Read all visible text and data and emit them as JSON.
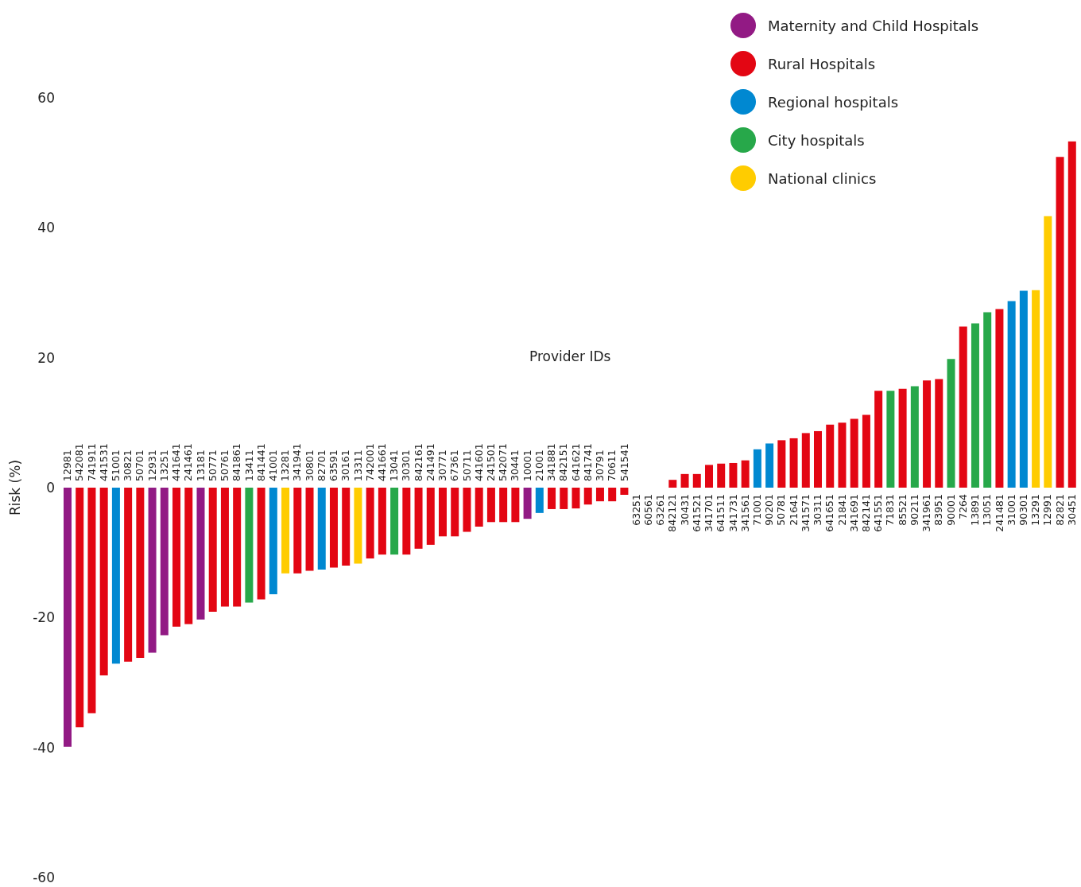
{
  "chart_data": {
    "type": "bar",
    "xlabel": "Provider IDs",
    "ylabel": "Risk (%)",
    "categories": [
      "12981",
      "542081",
      "741911",
      "441531",
      "51001",
      "30821",
      "50701",
      "12931",
      "13251",
      "441641",
      "241461",
      "13181",
      "50771",
      "50761",
      "841861",
      "13411",
      "841441",
      "41001",
      "13281",
      "341941",
      "30801",
      "82701",
      "63591",
      "30161",
      "13311",
      "742001",
      "441661",
      "13041",
      "30301",
      "842161",
      "241491",
      "30771",
      "67361",
      "50711",
      "441601",
      "241501",
      "542071",
      "30441",
      "10001",
      "21001",
      "341881",
      "842151",
      "641621",
      "841741",
      "30791",
      "70611",
      "541541",
      "63251",
      "60561",
      "63261",
      "842121",
      "30431",
      "641521",
      "341701",
      "641511",
      "341731",
      "341561",
      "71001",
      "90201",
      "50781",
      "21641",
      "341571",
      "30311",
      "641651",
      "21841",
      "341691",
      "842141",
      "641551",
      "71831",
      "85521",
      "90211",
      "341961",
      "83951",
      "90001",
      "7264",
      "13891",
      "13051",
      "241481",
      "31001",
      "90301",
      "13291",
      "12991",
      "82821",
      "30451"
    ],
    "series": [
      {
        "name": "Maternity and Child Hospitals",
        "color": "#921a84",
        "values": [
          -39.9,
          null,
          null,
          null,
          null,
          null,
          null,
          -25.4,
          -22.7,
          null,
          null,
          -20.3,
          null,
          null,
          null,
          null,
          null,
          null,
          null,
          null,
          null,
          null,
          null,
          null,
          null,
          null,
          null,
          null,
          null,
          null,
          null,
          null,
          null,
          null,
          null,
          null,
          null,
          null,
          -4.8,
          null,
          null,
          null,
          null,
          null,
          null,
          null,
          null,
          null,
          null,
          null,
          null,
          null,
          null,
          null,
          null,
          null,
          null,
          null,
          null,
          null,
          null,
          null,
          null,
          null,
          null,
          null,
          null,
          null,
          null,
          null,
          null,
          null,
          null,
          null,
          null,
          null,
          null,
          null,
          null,
          null,
          null,
          null,
          null,
          null
        ]
      },
      {
        "name": "Rural Hospitals",
        "color": "#e30613",
        "values": [
          null,
          -36.9,
          -34.7,
          -28.9,
          null,
          -26.8,
          -26.2,
          null,
          null,
          -21.4,
          -21.0,
          null,
          -19.1,
          -18.3,
          -18.3,
          null,
          -17.2,
          null,
          null,
          -13.2,
          -12.8,
          null,
          -12.3,
          -12.0,
          null,
          -10.9,
          -10.3,
          null,
          -10.3,
          -9.4,
          -8.8,
          -7.5,
          -7.5,
          -6.8,
          -6.0,
          -5.3,
          -5.3,
          -5.3,
          null,
          null,
          -3.3,
          -3.3,
          -3.2,
          -2.6,
          -2.1,
          -2.1,
          -1.1,
          0,
          0,
          0,
          1.2,
          2.1,
          2.1,
          3.5,
          3.7,
          3.8,
          4.2,
          null,
          null,
          7.3,
          7.6,
          8.4,
          8.7,
          9.7,
          10.0,
          10.6,
          11.2,
          14.9,
          null,
          15.2,
          null,
          16.5,
          16.7,
          null,
          24.8,
          null,
          null,
          27.5,
          null,
          null,
          null,
          null,
          50.9,
          53.3
        ]
      },
      {
        "name": "Regional hospitals",
        "color": "#0088d1",
        "values": [
          null,
          null,
          null,
          null,
          -27.1,
          null,
          null,
          null,
          null,
          null,
          null,
          null,
          null,
          null,
          null,
          null,
          null,
          -16.4,
          null,
          null,
          null,
          -12.6,
          null,
          null,
          null,
          null,
          null,
          null,
          null,
          null,
          null,
          null,
          null,
          null,
          null,
          null,
          null,
          null,
          null,
          -3.9,
          null,
          null,
          null,
          null,
          null,
          null,
          null,
          null,
          null,
          null,
          null,
          null,
          null,
          null,
          null,
          null,
          null,
          5.9,
          6.8,
          null,
          null,
          null,
          null,
          null,
          null,
          null,
          null,
          null,
          null,
          null,
          null,
          null,
          null,
          null,
          null,
          null,
          null,
          null,
          28.7,
          30.3,
          null,
          null,
          null,
          null
        ]
      },
      {
        "name": "City hospitals",
        "color": "#27a84a",
        "values": [
          null,
          null,
          null,
          null,
          null,
          null,
          null,
          null,
          null,
          null,
          null,
          null,
          null,
          null,
          null,
          -17.7,
          null,
          null,
          null,
          null,
          null,
          null,
          null,
          null,
          null,
          null,
          null,
          -10.3,
          null,
          null,
          null,
          null,
          null,
          null,
          null,
          null,
          null,
          null,
          null,
          null,
          null,
          null,
          null,
          null,
          null,
          null,
          null,
          null,
          null,
          null,
          null,
          null,
          null,
          null,
          null,
          null,
          null,
          null,
          null,
          null,
          null,
          null,
          null,
          null,
          null,
          null,
          null,
          null,
          14.9,
          null,
          15.6,
          null,
          null,
          19.8,
          null,
          25.3,
          27.0,
          null,
          null,
          null,
          null,
          null,
          null,
          null
        ]
      },
      {
        "name": "National clinics",
        "color": "#ffcc00",
        "values": [
          null,
          null,
          null,
          null,
          null,
          null,
          null,
          null,
          null,
          null,
          null,
          null,
          null,
          null,
          null,
          null,
          null,
          null,
          -13.2,
          null,
          null,
          null,
          null,
          null,
          -11.7,
          null,
          null,
          null,
          null,
          null,
          null,
          null,
          null,
          null,
          null,
          null,
          null,
          null,
          null,
          null,
          null,
          null,
          null,
          null,
          null,
          null,
          null,
          null,
          null,
          null,
          null,
          null,
          null,
          null,
          null,
          null,
          null,
          null,
          null,
          null,
          null,
          null,
          null,
          null,
          null,
          null,
          null,
          null,
          null,
          null,
          null,
          null,
          null,
          null,
          null,
          null,
          null,
          null,
          null,
          null,
          30.4,
          41.8,
          null,
          null
        ]
      }
    ],
    "stacked": true,
    "ylim": [
      -60,
      60
    ],
    "yticks": [
      -60,
      -40,
      -20,
      0,
      20,
      40,
      60
    ],
    "grid": false,
    "legend": "top right"
  }
}
